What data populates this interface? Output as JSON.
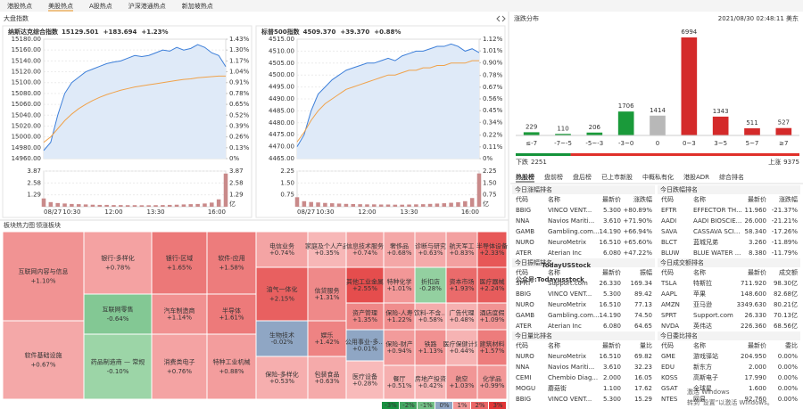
{
  "tabs": [
    "港股热点",
    "美股热点",
    "A股热点",
    "沪深港通热点",
    "新加坡热点"
  ],
  "active_tab": 1,
  "index_panel_title": "大盘指数",
  "chart_data": [
    {
      "type": "line",
      "title": "纳斯达克综合指数",
      "price": "15129.501",
      "change": "+183.694",
      "change_pct": "+1.23%",
      "categories": [
        "08/27",
        null,
        null,
        null,
        "10:30",
        null,
        null,
        null,
        null,
        null,
        "12:00",
        null,
        null,
        null,
        null,
        null,
        "13:30",
        null,
        null,
        null,
        null,
        null,
        null,
        null,
        null,
        null,
        "16:00"
      ],
      "series": [
        {
          "color": "#3d7fd9",
          "values": [
            14975,
            14990,
            15040,
            15080,
            15100,
            15110,
            15120,
            15125,
            15130,
            15135,
            15138,
            15140,
            15145,
            15150,
            15148,
            15150,
            15155,
            15160,
            15158,
            15165,
            15160,
            15163,
            15170,
            15165,
            15155,
            15150,
            15129.501
          ]
        },
        {
          "color": "#f0a24a",
          "values": [
            14990,
            15000,
            15015,
            15030,
            15042,
            15052,
            15060,
            15067,
            15073,
            15078,
            15082,
            15086,
            15089,
            15092,
            15094,
            15096,
            15098,
            15100,
            15102,
            15104,
            15106,
            15107,
            15109,
            15110,
            15111,
            15112,
            15112
          ]
        }
      ],
      "ylim": [
        14960,
        15180
      ],
      "yticks": [
        {
          "value": 15180,
          "label": "15180.00"
        },
        {
          "value": 15160,
          "label": "15160.00"
        },
        {
          "value": 15140,
          "label": "15140.00"
        },
        {
          "value": 15120,
          "label": "15120.00"
        },
        {
          "value": 15100,
          "label": "15100.00"
        },
        {
          "value": 15080,
          "label": "15080.00"
        },
        {
          "value": 15060,
          "label": "15060.00"
        },
        {
          "value": 15040,
          "label": "15040.00"
        },
        {
          "value": 15020,
          "label": "15020.00"
        },
        {
          "value": 15000,
          "label": "15000.00"
        },
        {
          "value": 14980,
          "label": "14980.00"
        },
        {
          "value": 14960,
          "label": "14960.00"
        }
      ],
      "y2lim": [
        0,
        1.43
      ],
      "y2ticks": [
        {
          "value": 1.43,
          "label": "1.43%"
        },
        {
          "value": 1.3,
          "label": "1.30%"
        },
        {
          "value": 1.17,
          "label": "1.17%"
        },
        {
          "value": 1.04,
          "label": "1.04%"
        },
        {
          "value": 0.91,
          "label": "0.91%"
        },
        {
          "value": 0.78,
          "label": "0.78%"
        },
        {
          "value": 0.65,
          "label": "0.65%"
        },
        {
          "value": 0.52,
          "label": "0.52%"
        },
        {
          "value": 0.39,
          "label": "0.39%"
        },
        {
          "value": 0.26,
          "label": "0.26%"
        },
        {
          "value": 0.13,
          "label": "0.13%"
        },
        {
          "value": 0,
          "label": "0%"
        }
      ],
      "volume": {
        "color": "#c98a8a",
        "values": [
          0.9,
          0.5,
          0.4,
          0.35,
          0.3,
          0.28,
          0.25,
          0.22,
          0.2,
          0.2,
          0.18,
          0.18,
          0.17,
          0.17,
          0.16,
          0.16,
          0.17,
          0.18,
          0.2,
          0.22,
          0.25,
          0.28,
          0.3,
          0.35,
          0.45,
          0.8,
          3.6
        ],
        "ylim": [
          0,
          3.87
        ],
        "yticks": [
          3.87,
          2.58,
          1.29
        ],
        "unit": "亿"
      },
      "grid": true
    },
    {
      "type": "line",
      "title": "标普500指数",
      "price": "4509.370",
      "change": "+39.370",
      "change_pct": "+0.88%",
      "categories": [
        "08/27",
        null,
        null,
        null,
        "10:30",
        null,
        null,
        null,
        null,
        null,
        "12:00",
        null,
        null,
        null,
        null,
        null,
        "13:30",
        null,
        null,
        null,
        null,
        null,
        null,
        null,
        null,
        null,
        "16:00"
      ],
      "series": [
        {
          "color": "#3d7fd9",
          "values": [
            4470,
            4475,
            4485,
            4492,
            4495,
            4498,
            4500,
            4502,
            4503,
            4504,
            4505,
            4505,
            4506,
            4507,
            4506,
            4508,
            4509,
            4510,
            4510,
            4511,
            4512,
            4512,
            4513,
            4512,
            4510,
            4511,
            4509.37
          ]
        },
        {
          "color": "#f0a24a",
          "values": [
            4472,
            4476,
            4481,
            4485,
            4488,
            4490,
            4492,
            4494,
            4495,
            4496,
            4497,
            4498,
            4499,
            4500,
            4500,
            4501,
            4502,
            4502,
            4503,
            4503,
            4504,
            4504,
            4505,
            4505,
            4505,
            4506,
            4506
          ]
        }
      ],
      "ylim": [
        4465,
        4515
      ],
      "yticks": [
        {
          "value": 4515,
          "label": "4515.00"
        },
        {
          "value": 4510,
          "label": "4510.00"
        },
        {
          "value": 4505,
          "label": "4505.00"
        },
        {
          "value": 4500,
          "label": "4500.00"
        },
        {
          "value": 4495,
          "label": "4495.00"
        },
        {
          "value": 4490,
          "label": "4490.00"
        },
        {
          "value": 4485,
          "label": "4485.00"
        },
        {
          "value": 4480,
          "label": "4480.00"
        },
        {
          "value": 4475,
          "label": "4475.00"
        },
        {
          "value": 4470,
          "label": "4470.00"
        },
        {
          "value": 4465,
          "label": "4465.00"
        }
      ],
      "y2lim": [
        0,
        1.12
      ],
      "y2ticks": [
        {
          "value": 1.12,
          "label": "1.12%"
        },
        {
          "value": 1.01,
          "label": "1.01%"
        },
        {
          "value": 0.9,
          "label": "0.90%"
        },
        {
          "value": 0.78,
          "label": "0.78%"
        },
        {
          "value": 0.67,
          "label": "0.67%"
        },
        {
          "value": 0.56,
          "label": "0.56%"
        },
        {
          "value": 0.45,
          "label": "0.45%"
        },
        {
          "value": 0.34,
          "label": "0.34%"
        },
        {
          "value": 0.22,
          "label": "0.22%"
        },
        {
          "value": 0.11,
          "label": "0.11%"
        },
        {
          "value": 0,
          "label": "0%"
        }
      ],
      "volume": {
        "color": "#c98a8a",
        "values": [
          0.6,
          0.35,
          0.3,
          0.27,
          0.24,
          0.22,
          0.2,
          0.18,
          0.17,
          0.16,
          0.15,
          0.15,
          0.14,
          0.14,
          0.13,
          0.13,
          0.14,
          0.15,
          0.16,
          0.18,
          0.2,
          0.22,
          0.25,
          0.28,
          0.35,
          0.55,
          2.1
        ],
        "ylim": [
          0,
          2.25
        ],
        "yticks": [
          2.25,
          {
            "value": 1.5,
            "label": "1.50"
          },
          0.75
        ],
        "unit": "亿"
      },
      "grid": true
    },
    {
      "type": "bar",
      "title": "涨跌分布",
      "timestamp": "2021/08/30 02:48:11 美东",
      "categories": [
        "≤-7",
        "-7~-5",
        "-5~-3",
        "-3~0",
        "0",
        "0~3",
        "3~5",
        "5~7",
        "≥7"
      ],
      "values": [
        229,
        110,
        206,
        1706,
        1414,
        6994,
        1343,
        511,
        527
      ],
      "colors": [
        "#1a9a3a",
        "#1a9a3a",
        "#1a9a3a",
        "#1a9a3a",
        "#b8b8b8",
        "#d42a2a",
        "#d42a2a",
        "#d42a2a",
        "#d42a2a"
      ],
      "summary": {
        "down_label": "下跌",
        "down": 2251,
        "up_label": "上涨",
        "up": 9375
      }
    },
    {
      "type": "treemap",
      "title": "板块热力图",
      "subtitle": "领涨板块",
      "categories": [
        "互联网内容与信息",
        "软件基础设施",
        "银行-多样化",
        "互联网零售",
        "药品制造商 — 常规",
        "银行-区域",
        "汽车制造商",
        "消费类电子",
        "软件-应用",
        "半导体",
        "特种工业机械",
        "电信业务",
        "油气一体化",
        "生物技术",
        "保险-多样化",
        "家庭及个人产品",
        "信贷服务",
        "娱乐",
        "包装食品",
        "信息技术服务",
        "其他工业金属",
        "资产管理",
        "公用事业-多...",
        "医疗设备",
        "奢侈品",
        "特种化学",
        "保险-人寿",
        "诊断与研究",
        "折扣店",
        "航天军工",
        "资本市场",
        "半导体设备",
        "医疗器械",
        "饮料-不含...",
        "广告代理",
        "酒店度假",
        "保险-财产",
        "铁路",
        "医疗保健计划",
        "建筑材料",
        "餐厅",
        "房地产投资",
        "航空",
        "化学品"
      ],
      "values": [
        1.1,
        0.67,
        0.78,
        -0.64,
        -0.1,
        1.65,
        1.14,
        0.76,
        1.58,
        1.61,
        0.88,
        0.74,
        2.15,
        -0.02,
        0.53,
        0.35,
        1.31,
        1.42,
        0.63,
        0.74,
        2.55,
        1.35,
        0.01,
        0.28,
        0.68,
        1.01,
        1.22,
        0.63,
        -0.28,
        0.83,
        1.93,
        2.33,
        2.24,
        0.58,
        0.48,
        1.09,
        0.94,
        1.13,
        0.44,
        1.57,
        0.51,
        0.42,
        1.03,
        0.99
      ],
      "value_labels": [
        "+1.10%",
        "+0.67%",
        "+0.78%",
        "-0.64%",
        "-0.10%",
        "+1.65%",
        "+1.14%",
        "+0.76%",
        "+1.58%",
        "+1.61%",
        "+0.88%",
        "+0.74%",
        "+2.15%",
        "-0.02%",
        "+0.53%",
        "+0.35%",
        "+1.31%",
        "+1.42%",
        "+0.63%",
        "+0.74%",
        "+2.55%",
        "+1.35%",
        "+0.01%",
        "+0.28%",
        "+0.68%",
        "+1.01%",
        "+1.22%",
        "+0.63%",
        "-0.28%",
        "+0.83%",
        "+1.93%",
        "+2.33%",
        "+2.24%",
        "+0.58%",
        "+0.48%",
        "+1.09%",
        "+0.94%",
        "+1.13%",
        "+0.44%",
        "+1.57%",
        "+0.51%",
        "+0.42%",
        "+1.03%",
        "+0.99%"
      ],
      "legend": [
        {
          "value": -3,
          "label": "-3%"
        },
        {
          "value": -2,
          "label": "-2%"
        },
        {
          "value": -1,
          "label": "-1%"
        },
        {
          "value": 0,
          "label": "0%"
        },
        {
          "value": 1,
          "label": "1%"
        },
        {
          "value": 2,
          "label": "2%"
        },
        {
          "value": 3,
          "label": "3%"
        }
      ]
    }
  ],
  "rank_tabs": [
    "热股榜",
    "盘前榜",
    "盘后榜",
    "已上市新股",
    "中概私有化",
    "港股ADR",
    "综合排名"
  ],
  "active_rank_tab": 0,
  "tables": [
    {
      "title": "今日涨幅排名",
      "columns": [
        "代码",
        "名称",
        "最新价",
        "涨跌幅"
      ],
      "rows": [
        [
          "BBIG",
          "VINCO VENT...",
          "5.300",
          "+80.89%"
        ],
        [
          "NNA",
          "Navios Mariti...",
          "3.610",
          "+71.90%"
        ],
        [
          "GAMB",
          "Gambling.com...",
          "14.190",
          "+66.94%"
        ],
        [
          "NURO",
          "NeuroMetrix",
          "16.510",
          "+65.60%"
        ],
        [
          "ATER",
          "Aterian Inc",
          "6.080",
          "+47.22%"
        ]
      ]
    },
    {
      "title": "今日跌幅排名",
      "columns": [
        "代码",
        "名称",
        "最新价",
        "涨跌幅"
      ],
      "rows": [
        [
          "EFTR",
          "EFFECTOR TH...",
          "11.960",
          "-21.37%"
        ],
        [
          "AADI",
          "AADI BIOSCIE...",
          "26.000",
          "-21.21%"
        ],
        [
          "SAVA",
          "CASSAVA SCI...",
          "58.340",
          "-17.26%"
        ],
        [
          "BLCT",
          "蓝城兄弟",
          "3.260",
          "-11.89%"
        ],
        [
          "BLUW",
          "BLUE WATER ...",
          "8.380",
          "-11.79%"
        ]
      ]
    },
    {
      "title": "今日振幅排名",
      "columns": [
        "代码",
        "名称",
        "最新价",
        "振幅"
      ],
      "rows": [
        [
          "SPRT",
          "Support.com",
          "26.330",
          "169.34"
        ],
        [
          "BBIG",
          "VINCO VENT...",
          "5.300",
          "89.42"
        ],
        [
          "NURO",
          "NeuroMetrix",
          "16.510",
          "77.13"
        ],
        [
          "GAMB",
          "Gambling.com...",
          "14.190",
          "74.50"
        ],
        [
          "ATER",
          "Aterian Inc",
          "6.080",
          "64.65"
        ]
      ]
    },
    {
      "title": "今日成交额排名",
      "columns": [
        "代码",
        "名称",
        "最新价",
        "成交额"
      ],
      "rows": [
        [
          "TSLA",
          "特斯拉",
          "711.920",
          "98.30亿"
        ],
        [
          "AAPL",
          "苹果",
          "148.600",
          "82.68亿"
        ],
        [
          "AMZN",
          "亚马逊",
          "3349.630",
          "80.21亿"
        ],
        [
          "SPRT",
          "Support.com",
          "26.330",
          "70.13亿"
        ],
        [
          "NVDA",
          "英伟达",
          "226.360",
          "68.56亿"
        ]
      ]
    },
    {
      "title": "今日量比排名",
      "columns": [
        "代码",
        "名称",
        "最新价",
        "量比"
      ],
      "rows": [
        [
          "NURO",
          "NeuroMetrix",
          "16.510",
          "69.82"
        ],
        [
          "NNA",
          "Navios Mariti...",
          "3.610",
          "32.23"
        ],
        [
          "CEMI",
          "Chembio Diag...",
          "2.000",
          "16.05"
        ],
        [
          "MOGU",
          "蘑菇街",
          "1.100",
          "17.62"
        ],
        [
          "BBIG",
          "VINCO VENT...",
          "5.300",
          "15.29"
        ]
      ]
    },
    {
      "title": "今日委比排名",
      "columns": [
        "代码",
        "名称",
        "最新价",
        "委比"
      ],
      "rows": [
        [
          "GME",
          "游戏驿站",
          "204.950",
          "0.00%"
        ],
        [
          "EDU",
          "新东方",
          "2.000",
          "0.00%"
        ],
        [
          "KOSS",
          "高斯电子",
          "17.990",
          "0.00%"
        ],
        [
          "GSAT",
          "全球星",
          "1.600",
          "0.00%"
        ],
        [
          "NTES",
          "网易",
          "92.760",
          "0.00%"
        ]
      ]
    }
  ],
  "watermarks": [
    "TodayUSStock",
    "公众号:Todayusstock"
  ],
  "os_notice": [
    "激活 Windows",
    "转到“设置”以激活 Windows。"
  ]
}
